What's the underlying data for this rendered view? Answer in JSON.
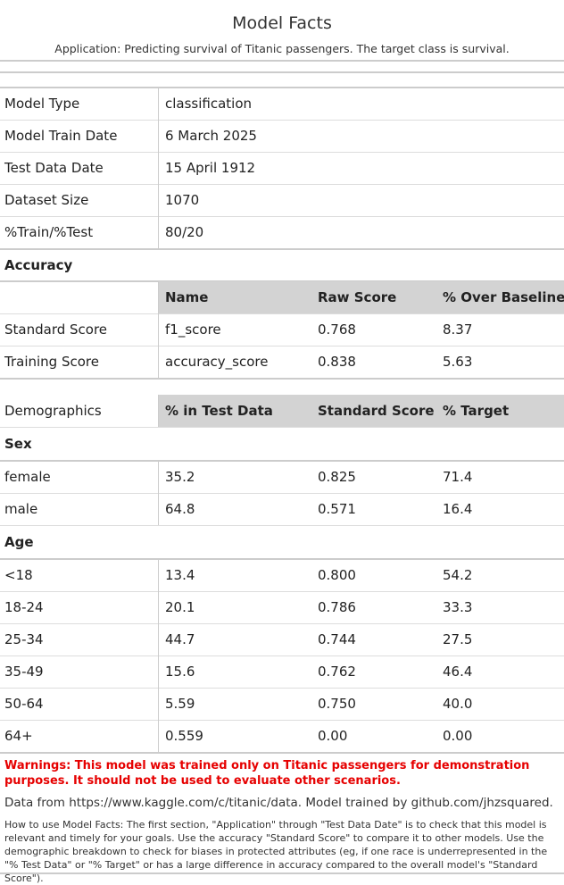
{
  "header": {
    "title": "Model Facts",
    "application": "Application: Predicting survival of Titanic passengers. The target class is survival."
  },
  "details": [
    {
      "label": "Model Type",
      "value": "classification"
    },
    {
      "label": "Model Train Date",
      "value": "6 March 2025"
    },
    {
      "label": "Test Data Date",
      "value": "15 April 1912"
    },
    {
      "label": "Dataset Size",
      "value": "1070"
    },
    {
      "label": "%Train/%Test",
      "value": "80/20"
    }
  ],
  "accuracy": {
    "heading": "Accuracy",
    "columns": [
      "Name",
      "Raw Score",
      "% Over Baseline"
    ],
    "rows": [
      {
        "label": "Standard Score",
        "name": "f1_score",
        "raw": "0.768",
        "over": "8.37"
      },
      {
        "label": "Training Score",
        "name": "accuracy_score",
        "raw": "0.838",
        "over": "5.63"
      }
    ]
  },
  "demographics": {
    "heading": "Demographics",
    "columns": [
      "% in Test Data",
      "Standard Score",
      "% Target"
    ],
    "groups": [
      {
        "name": "Sex",
        "rows": [
          {
            "label": "female",
            "pct": "35.2",
            "score": "0.825",
            "target": "71.4"
          },
          {
            "label": "male",
            "pct": "64.8",
            "score": "0.571",
            "target": "16.4"
          }
        ]
      },
      {
        "name": "Age",
        "rows": [
          {
            "label": "<18",
            "pct": "13.4",
            "score": "0.800",
            "target": "54.2"
          },
          {
            "label": "18-24",
            "pct": "20.1",
            "score": "0.786",
            "target": "33.3"
          },
          {
            "label": "25-34",
            "pct": "44.7",
            "score": "0.744",
            "target": "27.5"
          },
          {
            "label": "35-49",
            "pct": "15.6",
            "score": "0.762",
            "target": "46.4"
          },
          {
            "label": "50-64",
            "pct": "5.59",
            "score": "0.750",
            "target": "40.0"
          },
          {
            "label": "64+",
            "pct": "0.559",
            "score": "0.00",
            "target": "0.00"
          }
        ]
      }
    ]
  },
  "footer": {
    "warning": "Warnings: This model was trained only on Titanic passengers for demonstration purposes. It should not be used to evaluate other scenarios.",
    "source": "Data from https://www.kaggle.com/c/titanic/data. Model trained by github.com/jhzsquared.",
    "howto": "How to use Model Facts: The first section, \"Application\" through \"Test Data Date\" is to check that this model is relevant and timely for your goals. Use the accuracy \"Standard Score\" to compare it to other models. Use the demographic breakdown to check for biases in protected attributes (eg, if one race is underrepresented in the \"% Test Data\" or \"% Target\" or has a large difference in accuracy compared to the overall model's \"Standard Score\")."
  },
  "colors": {
    "warning": "#e60000",
    "header_fill": "#d3d3d3",
    "rule": "#cccccc"
  }
}
